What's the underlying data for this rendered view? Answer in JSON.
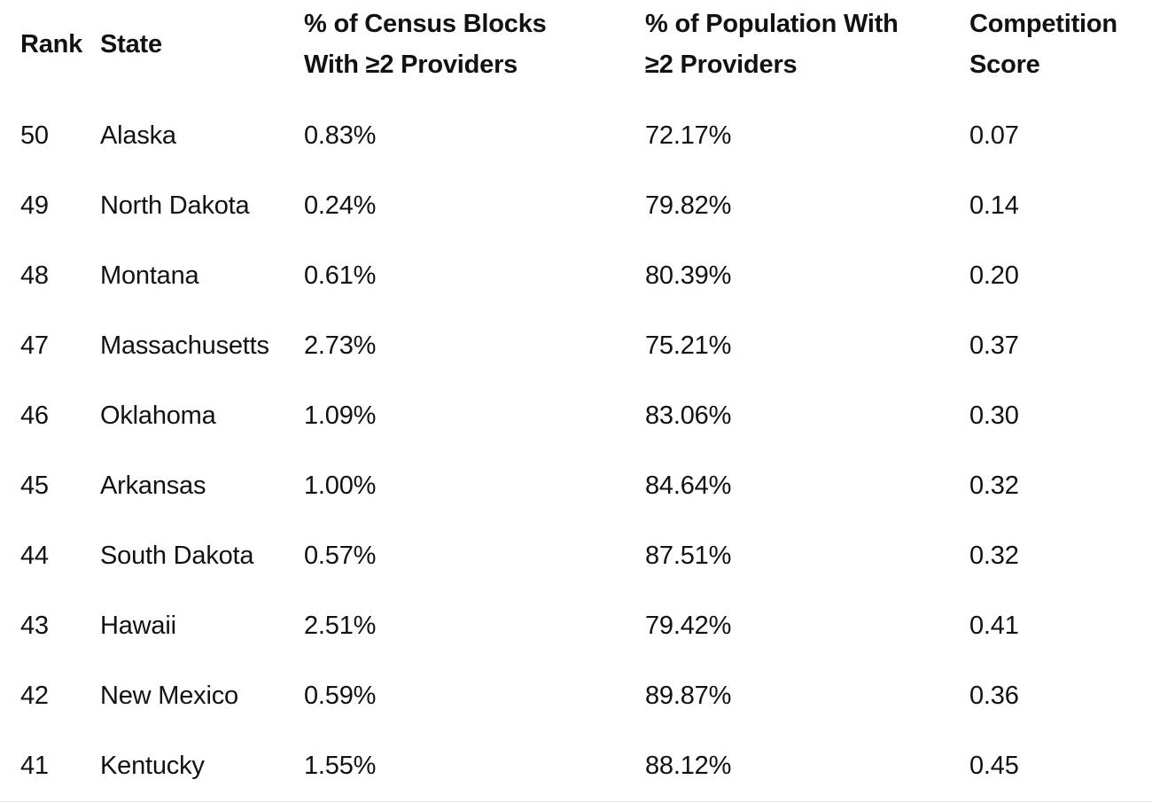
{
  "table": {
    "columns": [
      {
        "id": "rank",
        "lines": [
          "Rank"
        ]
      },
      {
        "id": "state",
        "lines": [
          "State"
        ]
      },
      {
        "id": "census_blocks_pct",
        "lines": [
          "% of Census Blocks",
          "With ≥2 Providers"
        ]
      },
      {
        "id": "population_pct",
        "lines": [
          "% of Population With",
          "≥2 Providers"
        ]
      },
      {
        "id": "competition_score",
        "lines": [
          "Competition",
          "Score"
        ]
      }
    ],
    "rows": [
      {
        "rank": "50",
        "state": "Alaska",
        "census_blocks_pct": "0.83%",
        "population_pct": "72.17%",
        "competition_score": "0.07"
      },
      {
        "rank": "49",
        "state": "North Dakota",
        "census_blocks_pct": "0.24%",
        "population_pct": "79.82%",
        "competition_score": "0.14"
      },
      {
        "rank": "48",
        "state": "Montana",
        "census_blocks_pct": "0.61%",
        "population_pct": "80.39%",
        "competition_score": "0.20"
      },
      {
        "rank": "47",
        "state": "Massachusetts",
        "census_blocks_pct": "2.73%",
        "population_pct": "75.21%",
        "competition_score": "0.37"
      },
      {
        "rank": "46",
        "state": "Oklahoma",
        "census_blocks_pct": "1.09%",
        "population_pct": "83.06%",
        "competition_score": "0.30"
      },
      {
        "rank": "45",
        "state": "Arkansas",
        "census_blocks_pct": "1.00%",
        "population_pct": "84.64%",
        "competition_score": "0.32"
      },
      {
        "rank": "44",
        "state": "South Dakota",
        "census_blocks_pct": "0.57%",
        "population_pct": "87.51%",
        "competition_score": "0.32"
      },
      {
        "rank": "43",
        "state": "Hawaii",
        "census_blocks_pct": "2.51%",
        "population_pct": "79.42%",
        "competition_score": "0.41"
      },
      {
        "rank": "42",
        "state": "New Mexico",
        "census_blocks_pct": "0.59%",
        "population_pct": "89.87%",
        "competition_score": "0.36"
      },
      {
        "rank": "41",
        "state": "Kentucky",
        "census_blocks_pct": "1.55%",
        "population_pct": "88.12%",
        "competition_score": "0.45"
      }
    ]
  },
  "colors": {
    "text": "#121212",
    "background": "#ffffff",
    "divider": "#e5e5e5"
  }
}
